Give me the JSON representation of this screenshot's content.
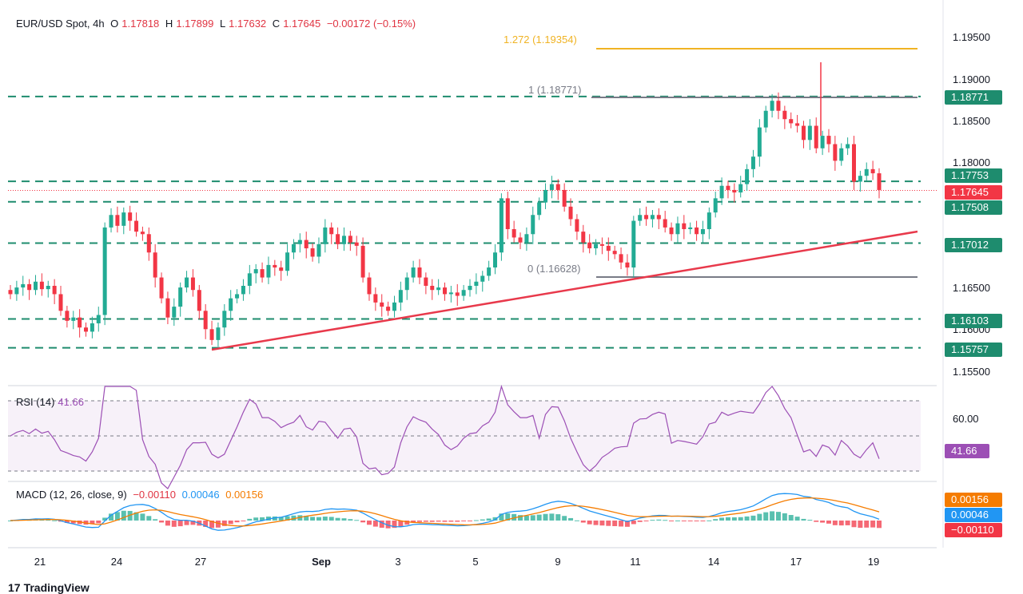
{
  "header": {
    "symbol": "EUR/USD Spot, 4h",
    "o_label": "O",
    "o_value": "1.17818",
    "h_label": "H",
    "h_value": "1.17899",
    "l_label": "L",
    "l_value": "1.17632",
    "c_label": "C",
    "c_value": "1.17645",
    "change": "−0.00172 (−0.15%)"
  },
  "fib": {
    "level_1272": "1.272 (1.19354)",
    "level_1": "1 (1.18771)",
    "level_0": "0 (1.16628)"
  },
  "price_axis": [
    "1.19500",
    "1.19000",
    "1.18500",
    "1.18000",
    "1.16500",
    "1.16000",
    "1.15500"
  ],
  "price_tags": {
    "t18771": "1.18771",
    "t17753": "1.17753",
    "t17645": "1.17645",
    "t17508": "1.17508",
    "t17012": "1.17012",
    "t16103": "1.16103",
    "t15757": "1.15757"
  },
  "rsi": {
    "label": "RSI (14)",
    "value": "41.66",
    "axis": "60.00",
    "tag": "41.66"
  },
  "macd": {
    "label": "MACD (12, 26, close, 9)",
    "hist": "−0.00110",
    "macd": "0.00046",
    "signal": "0.00156",
    "tag_signal": "0.00156",
    "tag_macd": "0.00046",
    "tag_hist": "−0.00110"
  },
  "x_axis": [
    "21",
    "24",
    "27",
    "Sep",
    "3",
    "5",
    "9",
    "11",
    "14",
    "17",
    "19"
  ],
  "footer": {
    "brand": "TradingView"
  },
  "colors": {
    "up": "#22ab94",
    "down": "#f23645",
    "fib_1272": "#f0b323",
    "trend": "#e8394b",
    "dash": "#1e8c6e",
    "rsi": "#9c4fb5",
    "macd": "#2196f3",
    "signal": "#f57c00"
  },
  "chart_data": {
    "type": "candlestick",
    "title": "EUR/USD Spot, 4h",
    "ylim": [
      1.1525,
      1.1965
    ],
    "horizontal_levels": [
      1.18771,
      1.17753,
      1.17508,
      1.17012,
      1.16103,
      1.15757
    ],
    "fib_levels": [
      {
        "ratio": "1.272",
        "price": 1.19354
      },
      {
        "ratio": "1",
        "price": 1.18771
      },
      {
        "ratio": "0",
        "price": 1.16628
      }
    ],
    "trendline": [
      {
        "x": "27",
        "y": 1.15757
      },
      {
        "x": "19",
        "y": 1.1718
      }
    ],
    "last_close": 1.17645
  }
}
